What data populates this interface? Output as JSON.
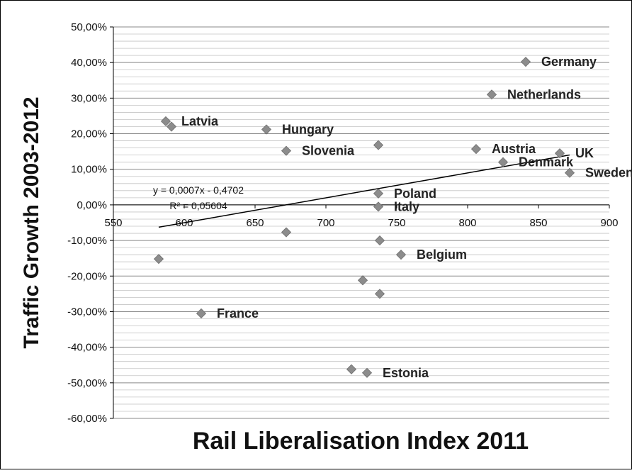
{
  "chart_data": {
    "type": "scatter",
    "title": "",
    "xlabel": "Rail Liberalisation Index 2011",
    "ylabel": "Traffic Growth 2003-2012",
    "xlim": [
      550,
      900
    ],
    "ylim": [
      -0.6,
      0.5
    ],
    "x_ticks": [
      550,
      600,
      650,
      700,
      750,
      800,
      850,
      900
    ],
    "x_tick_labels": [
      "550",
      "600",
      "650",
      "700",
      "750",
      "800",
      "850",
      "900"
    ],
    "y_ticks": [
      0.5,
      0.4,
      0.3,
      0.2,
      0.1,
      0.0,
      -0.1,
      -0.2,
      -0.3,
      -0.4,
      -0.5,
      -0.6
    ],
    "y_tick_labels": [
      "50,00%",
      "40,00%",
      "30,00%",
      "20,00%",
      "10,00%",
      "0,00%",
      "-10,00%",
      "-20,00%",
      "-30,00%",
      "-40,00%",
      "-50,00%",
      "-60,00%"
    ],
    "grid": true,
    "minor_grid": true,
    "legend": "none",
    "marker": "diamond",
    "marker_color": "#8c8c8c",
    "points": [
      {
        "x": 841,
        "y": 0.402,
        "label": "Germany"
      },
      {
        "x": 817,
        "y": 0.31,
        "label": "Netherlands"
      },
      {
        "x": 587,
        "y": 0.235,
        "label": "Latvia"
      },
      {
        "x": 591,
        "y": 0.22,
        "label": ""
      },
      {
        "x": 658,
        "y": 0.212,
        "label": "Hungary"
      },
      {
        "x": 672,
        "y": 0.152,
        "label": "Slovenia"
      },
      {
        "x": 737,
        "y": 0.168,
        "label": ""
      },
      {
        "x": 806,
        "y": 0.157,
        "label": "Austria"
      },
      {
        "x": 865,
        "y": 0.145,
        "label": "UK"
      },
      {
        "x": 825,
        "y": 0.12,
        "label": "Denmark"
      },
      {
        "x": 872,
        "y": 0.09,
        "label": "Sweden"
      },
      {
        "x": 737,
        "y": 0.032,
        "label": "Poland"
      },
      {
        "x": 737,
        "y": -0.005,
        "label": "Italy"
      },
      {
        "x": 672,
        "y": -0.077,
        "label": ""
      },
      {
        "x": 738,
        "y": -0.1,
        "label": ""
      },
      {
        "x": 753,
        "y": -0.14,
        "label": "Belgium"
      },
      {
        "x": 582,
        "y": -0.152,
        "label": ""
      },
      {
        "x": 726,
        "y": -0.212,
        "label": ""
      },
      {
        "x": 738,
        "y": -0.25,
        "label": ""
      },
      {
        "x": 612,
        "y": -0.305,
        "label": "France"
      },
      {
        "x": 718,
        "y": -0.462,
        "label": ""
      },
      {
        "x": 729,
        "y": -0.472,
        "label": "Estonia"
      }
    ],
    "trendline": {
      "type": "linear",
      "x_range": [
        582,
        872
      ],
      "slope": 0.0007,
      "intercept": -0.4702
    },
    "annotations": [
      "y = 0,0007x - 0,4702",
      "R² = 0,05604"
    ]
  }
}
